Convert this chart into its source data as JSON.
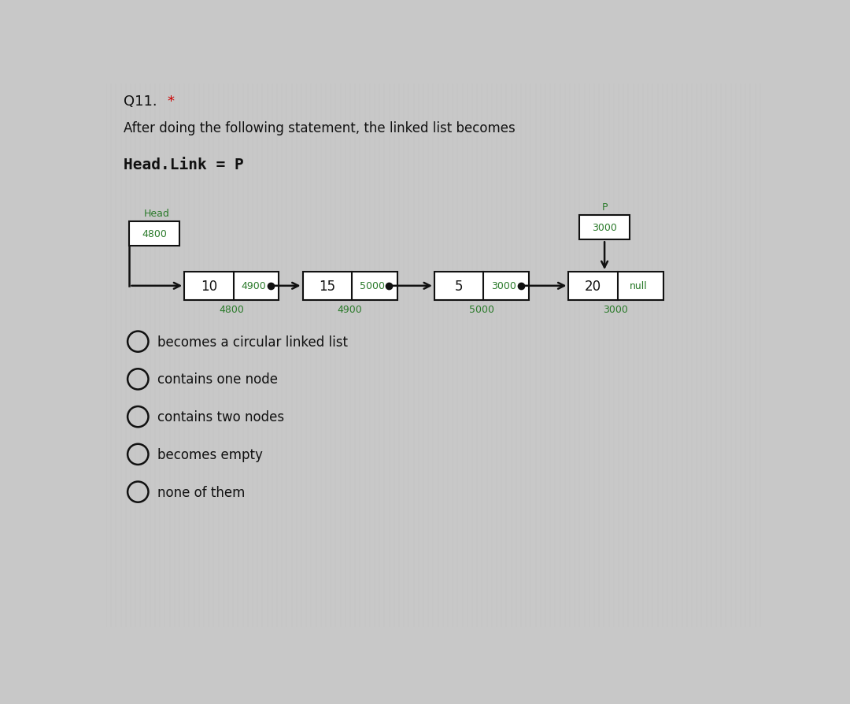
{
  "title": "Q11. *",
  "title_color": "#1a1a1a",
  "asterisk_color": "#cc0000",
  "subtitle": "After doing the following statement, the linked list becomes",
  "subtitle_color": "#1a1a1a",
  "statement": "Head.Link = P",
  "statement_color": "#1a1a1a",
  "bg_color": "#c8c8c8",
  "dark_color": "#111111",
  "green_color": "#2a7a2a",
  "head_label": "Head",
  "p_label": "P",
  "head_box_value": "4800",
  "p_box_value": "3000",
  "nodes": [
    {
      "data": "10",
      "link": "4900",
      "addr": "4800"
    },
    {
      "data": "15",
      "link": "5000",
      "addr": "4900"
    },
    {
      "data": "5",
      "link": "3000",
      "addr": "5000"
    },
    {
      "data": "20",
      "link": "null",
      "addr": "3000"
    }
  ],
  "options": [
    "becomes a circular linked list",
    "contains one node",
    "contains two nodes",
    "becomes empty",
    "none of them"
  ]
}
